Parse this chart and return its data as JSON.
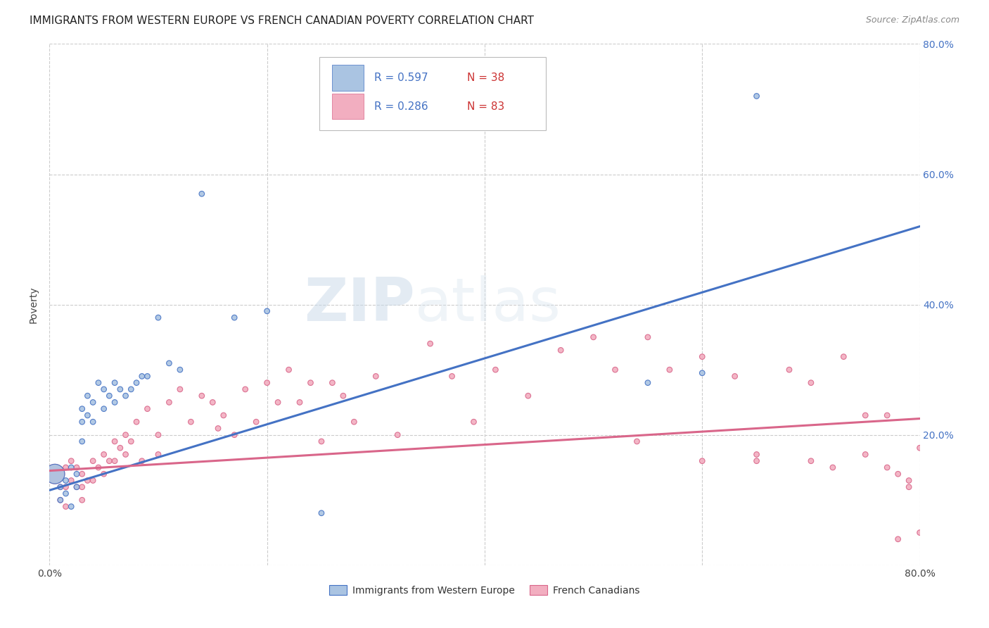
{
  "title": "IMMIGRANTS FROM WESTERN EUROPE VS FRENCH CANADIAN POVERTY CORRELATION CHART",
  "source": "Source: ZipAtlas.com",
  "ylabel": "Poverty",
  "xlim": [
    0.0,
    0.8
  ],
  "ylim": [
    0.0,
    0.8
  ],
  "legend_r1": "R = 0.597",
  "legend_n1": "N = 38",
  "legend_r2": "R = 0.286",
  "legend_n2": "N = 83",
  "blue_fill": "#aac4e2",
  "pink_fill": "#f2aec0",
  "line_blue": "#4472c4",
  "line_pink": "#d9668a",
  "watermark_zip": "ZIP",
  "watermark_atlas": "atlas",
  "blue_line_x0": 0.0,
  "blue_line_y0": 0.115,
  "blue_line_x1": 0.8,
  "blue_line_y1": 0.52,
  "pink_line_x0": 0.0,
  "pink_line_y0": 0.145,
  "pink_line_x1": 0.8,
  "pink_line_y1": 0.225,
  "blue_scatter_x": [
    0.005,
    0.01,
    0.01,
    0.015,
    0.015,
    0.02,
    0.02,
    0.025,
    0.025,
    0.03,
    0.03,
    0.03,
    0.035,
    0.035,
    0.04,
    0.04,
    0.045,
    0.05,
    0.05,
    0.055,
    0.06,
    0.06,
    0.065,
    0.07,
    0.075,
    0.08,
    0.085,
    0.09,
    0.1,
    0.11,
    0.12,
    0.14,
    0.17,
    0.2,
    0.25,
    0.55,
    0.6,
    0.65
  ],
  "blue_scatter_y": [
    0.14,
    0.12,
    0.1,
    0.13,
    0.11,
    0.15,
    0.09,
    0.14,
    0.12,
    0.24,
    0.22,
    0.19,
    0.26,
    0.23,
    0.25,
    0.22,
    0.28,
    0.27,
    0.24,
    0.26,
    0.28,
    0.25,
    0.27,
    0.26,
    0.27,
    0.28,
    0.29,
    0.29,
    0.38,
    0.31,
    0.3,
    0.57,
    0.38,
    0.39,
    0.08,
    0.28,
    0.295,
    0.72
  ],
  "blue_scatter_s": [
    400,
    30,
    30,
    30,
    30,
    30,
    30,
    30,
    30,
    30,
    30,
    30,
    30,
    30,
    30,
    30,
    30,
    30,
    30,
    30,
    30,
    30,
    30,
    30,
    30,
    30,
    30,
    30,
    30,
    30,
    30,
    30,
    30,
    30,
    30,
    30,
    30,
    30
  ],
  "pink_scatter_x": [
    0.005,
    0.01,
    0.01,
    0.015,
    0.015,
    0.015,
    0.02,
    0.02,
    0.025,
    0.025,
    0.03,
    0.03,
    0.03,
    0.035,
    0.04,
    0.04,
    0.045,
    0.05,
    0.05,
    0.055,
    0.06,
    0.06,
    0.065,
    0.07,
    0.07,
    0.075,
    0.08,
    0.085,
    0.09,
    0.1,
    0.1,
    0.11,
    0.12,
    0.13,
    0.14,
    0.15,
    0.155,
    0.16,
    0.17,
    0.18,
    0.19,
    0.2,
    0.21,
    0.22,
    0.23,
    0.24,
    0.25,
    0.26,
    0.27,
    0.28,
    0.3,
    0.32,
    0.35,
    0.37,
    0.39,
    0.41,
    0.44,
    0.47,
    0.5,
    0.52,
    0.55,
    0.57,
    0.6,
    0.63,
    0.65,
    0.68,
    0.7,
    0.73,
    0.75,
    0.77,
    0.54,
    0.6,
    0.65,
    0.7,
    0.72,
    0.75,
    0.77,
    0.78,
    0.79,
    0.8,
    0.8,
    0.79,
    0.78
  ],
  "pink_scatter_y": [
    0.14,
    0.12,
    0.1,
    0.15,
    0.12,
    0.09,
    0.16,
    0.13,
    0.15,
    0.12,
    0.14,
    0.12,
    0.1,
    0.13,
    0.16,
    0.13,
    0.15,
    0.17,
    0.14,
    0.16,
    0.19,
    0.16,
    0.18,
    0.2,
    0.17,
    0.19,
    0.22,
    0.16,
    0.24,
    0.2,
    0.17,
    0.25,
    0.27,
    0.22,
    0.26,
    0.25,
    0.21,
    0.23,
    0.2,
    0.27,
    0.22,
    0.28,
    0.25,
    0.3,
    0.25,
    0.28,
    0.19,
    0.28,
    0.26,
    0.22,
    0.29,
    0.2,
    0.34,
    0.29,
    0.22,
    0.3,
    0.26,
    0.33,
    0.35,
    0.3,
    0.35,
    0.3,
    0.32,
    0.29,
    0.16,
    0.3,
    0.28,
    0.32,
    0.17,
    0.23,
    0.19,
    0.16,
    0.17,
    0.16,
    0.15,
    0.23,
    0.15,
    0.14,
    0.13,
    0.05,
    0.18,
    0.12,
    0.04
  ],
  "pink_scatter_s": [
    400,
    30,
    30,
    30,
    30,
    30,
    30,
    30,
    30,
    30,
    30,
    30,
    30,
    30,
    30,
    30,
    30,
    30,
    30,
    30,
    30,
    30,
    30,
    30,
    30,
    30,
    30,
    30,
    30,
    30,
    30,
    30,
    30,
    30,
    30,
    30,
    30,
    30,
    30,
    30,
    30,
    30,
    30,
    30,
    30,
    30,
    30,
    30,
    30,
    30,
    30,
    30,
    30,
    30,
    30,
    30,
    30,
    30,
    30,
    30,
    30,
    30,
    30,
    30,
    30,
    30,
    30,
    30,
    30,
    30,
    30,
    30,
    30,
    30,
    30,
    30,
    30,
    30,
    30,
    30,
    30,
    30,
    30
  ]
}
